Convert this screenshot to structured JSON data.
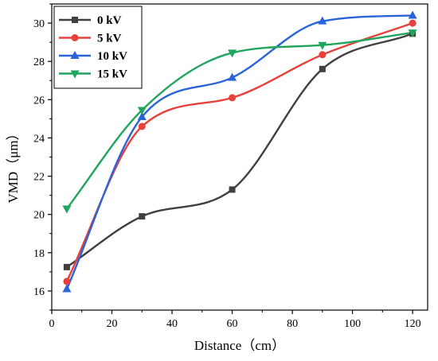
{
  "chart_data": {
    "type": "scatter",
    "xlabel": "Distance（cm）",
    "ylabel": "VMD（μm）",
    "xlim": [
      0,
      125
    ],
    "ylim": [
      15,
      31
    ],
    "xticks": [
      0,
      20,
      40,
      60,
      80,
      100,
      120
    ],
    "yticks": [
      16,
      18,
      20,
      22,
      24,
      26,
      28,
      30
    ],
    "grid": false,
    "legend_position": "top-left",
    "x": [
      5,
      30,
      60,
      90,
      120
    ],
    "series": [
      {
        "name": "0 kV",
        "marker": "square",
        "color": "#404040",
        "values": [
          17.25,
          19.9,
          21.3,
          27.6,
          29.45
        ]
      },
      {
        "name": "5 kV",
        "marker": "circle",
        "color": "#e8403a",
        "values": [
          16.5,
          24.6,
          26.1,
          28.35,
          30.0
        ]
      },
      {
        "name": "10 kV",
        "marker": "triangle-up",
        "color": "#2a64d8",
        "values": [
          16.1,
          25.1,
          27.15,
          30.1,
          30.4
        ]
      },
      {
        "name": "15 kV",
        "marker": "triangle-down",
        "color": "#1fa55e",
        "values": [
          20.3,
          25.45,
          28.45,
          28.85,
          29.5
        ]
      }
    ]
  }
}
